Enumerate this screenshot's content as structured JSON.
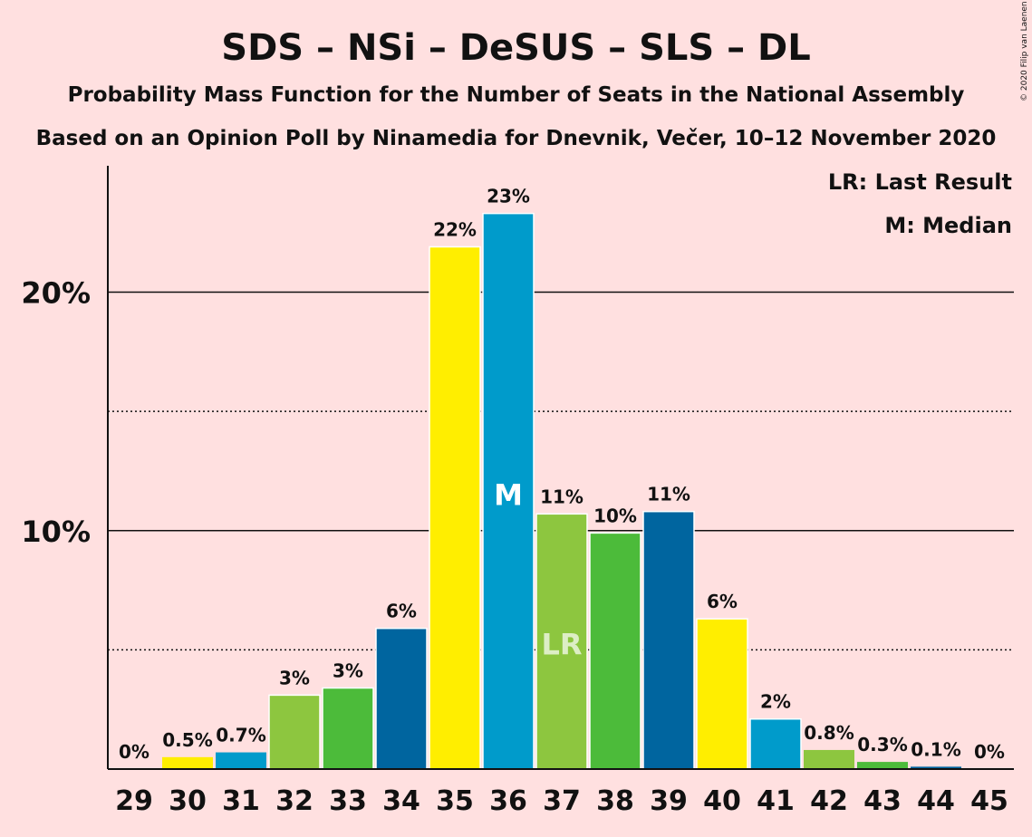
{
  "title": "SDS – NSi – DeSUS – SLS – DL",
  "subtitle1": "Probability Mass Function for the Number of Seats in the National Assembly",
  "subtitle2": "Based on an Opinion Poll by Ninamedia for Dnevnik, Večer, 10–12 November 2020",
  "legend": {
    "lr": "LR: Last Result",
    "m": "M: Median"
  },
  "copyright": "© 2020 Filip van Laenen",
  "colors": {
    "background": "#ffe0e0",
    "yellow": "#ffee00",
    "lightblue": "#009bcb",
    "lightgreen": "#8dc63f",
    "green": "#4cbb3a",
    "darkblue": "#00659f"
  },
  "chart_data": {
    "type": "bar",
    "categories": [
      "29",
      "30",
      "31",
      "32",
      "33",
      "34",
      "35",
      "36",
      "37",
      "38",
      "39",
      "40",
      "41",
      "42",
      "43",
      "44",
      "45"
    ],
    "values": [
      0,
      0.5,
      0.7,
      3.1,
      3.4,
      5.9,
      21.9,
      23.3,
      10.7,
      9.9,
      10.8,
      6.3,
      2.1,
      0.8,
      0.3,
      0.1,
      0
    ],
    "labels": [
      "0%",
      "0.5%",
      "0.7%",
      "3%",
      "3%",
      "6%",
      "22%",
      "23%",
      "11%",
      "10%",
      "11%",
      "6%",
      "2%",
      "0.8%",
      "0.3%",
      "0.1%",
      "0%"
    ],
    "bar_colors": [
      "yellow",
      "yellow",
      "lightblue",
      "lightgreen",
      "green",
      "darkblue",
      "yellow",
      "lightblue",
      "lightgreen",
      "green",
      "darkblue",
      "yellow",
      "lightblue",
      "lightgreen",
      "green",
      "darkblue",
      "yellow"
    ],
    "yticks": [
      {
        "value": 10,
        "label": "10%"
      },
      {
        "value": 20,
        "label": "20%"
      }
    ],
    "minor_gridlines": [
      5,
      15
    ],
    "ylim": [
      0,
      25.3
    ],
    "median_seat": "36",
    "median_marker": "M",
    "last_result_seat": "37",
    "last_result_marker": "LR",
    "grid": true,
    "legend_position": "top-right"
  }
}
